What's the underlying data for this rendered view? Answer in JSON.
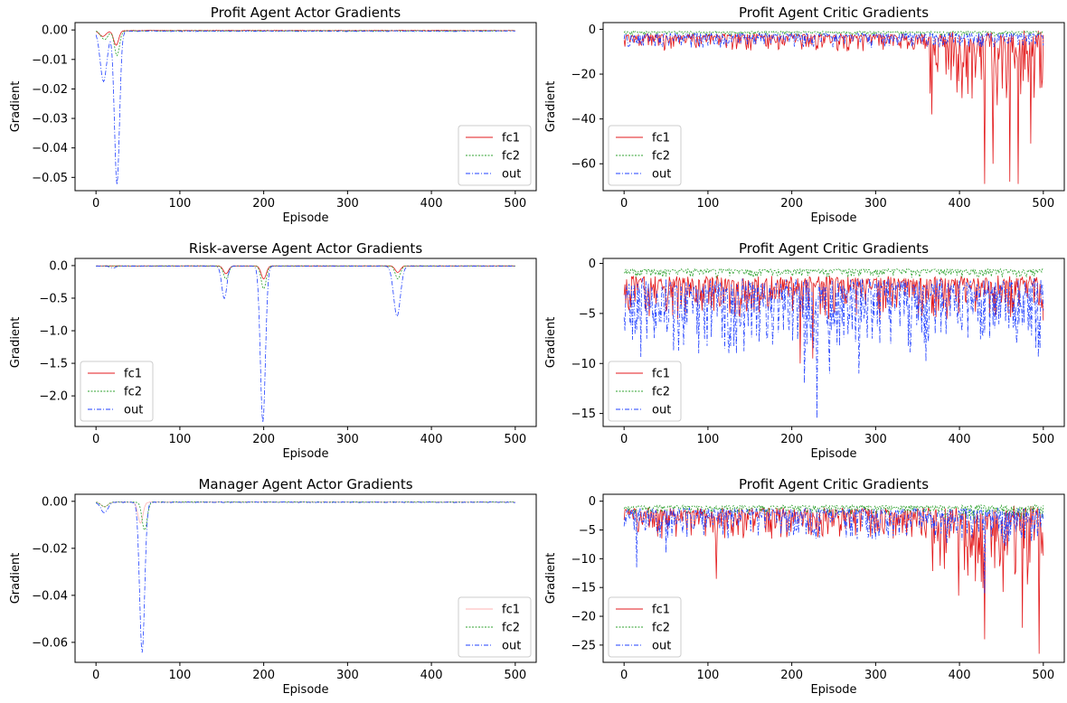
{
  "chart_data": [
    {
      "type": "line",
      "title": "Profit Agent Actor Gradients",
      "xlabel": "Episode",
      "ylabel": "Gradient",
      "xlim": [
        -25,
        525
      ],
      "ylim": [
        -0.0545,
        0.0025
      ],
      "xticks": [
        0,
        100,
        200,
        300,
        400,
        500
      ],
      "yticks": [
        0,
        -0.01,
        -0.02,
        -0.03,
        -0.04,
        -0.05
      ],
      "ytick_labels": [
        "0.00",
        "−0.01",
        "−0.02",
        "−0.03",
        "−0.04",
        "−0.05"
      ],
      "legend": "lower-right",
      "grid": false,
      "series": [
        {
          "name": "fc1",
          "color": "#e31a1c",
          "style": "solid",
          "baseline": -0.0002,
          "noise": 0.0002,
          "dips": [
            [
              8,
              -0.002,
              4
            ],
            [
              24,
              -0.005,
              3
            ]
          ]
        },
        {
          "name": "fc2",
          "color": "#2ca02c",
          "style": "dotted",
          "baseline": -0.0003,
          "noise": 0.0002,
          "dips": [
            [
              10,
              -0.003,
              4
            ],
            [
              25,
              -0.0085,
              3
            ]
          ]
        },
        {
          "name": "out",
          "color": "#1f3fff",
          "style": "dashdot",
          "baseline": -0.0004,
          "noise": 0.0003,
          "dips": [
            [
              9,
              -0.017,
              4
            ],
            [
              25,
              -0.052,
              3
            ]
          ]
        }
      ]
    },
    {
      "type": "line",
      "title": "Profit Agent Critic Gradients",
      "xlabel": "Episode",
      "ylabel": "Gradient",
      "xlim": [
        -25,
        525
      ],
      "ylim": [
        -72,
        3
      ],
      "xticks": [
        0,
        100,
        200,
        300,
        400,
        500
      ],
      "yticks": [
        0,
        -20,
        -40,
        -60
      ],
      "ytick_labels": [
        "0",
        "−20",
        "−40",
        "−60"
      ],
      "legend": "lower-left",
      "grid": false,
      "series": [
        {
          "name": "fc1",
          "color": "#e31a1c",
          "style": "solid",
          "baseline": -2.5,
          "noise": 7,
          "noise2": 30,
          "split": 365,
          "extremes": [
            [
              430,
              -69
            ],
            [
              460,
              -68
            ],
            [
              470,
              -69
            ],
            [
              367,
              -38
            ],
            [
              440,
              -60
            ],
            [
              485,
              -51
            ]
          ]
        },
        {
          "name": "fc2",
          "color": "#2ca02c",
          "style": "dotted",
          "baseline": -1,
          "noise": 1.5,
          "noise2": 2,
          "split": 365
        },
        {
          "name": "out",
          "color": "#1f3fff",
          "style": "dashdot",
          "baseline": -2,
          "noise": 6,
          "noise2": 6,
          "split": 365,
          "extremes": [
            [
              15,
              -5
            ]
          ]
        }
      ]
    },
    {
      "type": "line",
      "title": "Risk-averse Agent Actor Gradients",
      "xlabel": "Episode",
      "ylabel": "Gradient",
      "xlim": [
        -25,
        525
      ],
      "ylim": [
        -2.47,
        0.11
      ],
      "xticks": [
        0,
        100,
        200,
        300,
        400,
        500
      ],
      "yticks": [
        0,
        -0.5,
        -1,
        -1.5,
        -2
      ],
      "ytick_labels": [
        "0.0",
        "−0.5",
        "−1.0",
        "−1.5",
        "−2.0"
      ],
      "legend": "lower-left",
      "grid": false,
      "series": [
        {
          "name": "fc1",
          "color": "#e31a1c",
          "style": "solid",
          "baseline": -0.005,
          "noise": 0.004,
          "dips": [
            [
              155,
              -0.12,
              3
            ],
            [
              200,
              -0.2,
              3
            ],
            [
              360,
              -0.1,
              3
            ]
          ]
        },
        {
          "name": "fc2",
          "color": "#2ca02c",
          "style": "dotted",
          "baseline": -0.005,
          "noise": 0.004,
          "dips": [
            [
              155,
              -0.2,
              3
            ],
            [
              200,
              -0.35,
              3
            ],
            [
              360,
              -0.2,
              3
            ]
          ]
        },
        {
          "name": "out",
          "color": "#1f3fff",
          "style": "dashdot",
          "baseline": -0.008,
          "noise": 0.006,
          "dips": [
            [
              153,
              -0.5,
              3
            ],
            [
              199,
              -2.4,
              3
            ],
            [
              359,
              -0.77,
              4
            ],
            [
              20,
              -0.03,
              3
            ]
          ]
        }
      ]
    },
    {
      "type": "line",
      "title": "Profit Agent Critic Gradients",
      "xlabel": "Episode",
      "ylabel": "Gradient",
      "xlim": [
        -25,
        525
      ],
      "ylim": [
        -16.3,
        0.5
      ],
      "xticks": [
        0,
        100,
        200,
        300,
        400,
        500
      ],
      "yticks": [
        0,
        -5,
        -10,
        -15
      ],
      "ytick_labels": [
        "0",
        "−5",
        "−10",
        "−15"
      ],
      "legend": "lower-left",
      "grid": false,
      "series": [
        {
          "name": "fc1",
          "color": "#e31a1c",
          "style": "solid",
          "baseline": -1.5,
          "noise": 4,
          "noise2": 4,
          "split": 500,
          "extremes": [
            [
              210,
              -10
            ],
            [
              225,
              -9.5
            ]
          ]
        },
        {
          "name": "fc2",
          "color": "#2ca02c",
          "style": "dotted",
          "baseline": -0.6,
          "noise": 0.8,
          "noise2": 0.8,
          "split": 500
        },
        {
          "name": "out",
          "color": "#1f3fff",
          "style": "dashdot",
          "baseline": -2,
          "noise": 7,
          "noise2": 6,
          "split": 500,
          "extremes": [
            [
              230,
              -15.5
            ],
            [
              215,
              -12
            ],
            [
              245,
              -11
            ],
            [
              280,
              -11
            ],
            [
              360,
              -9.8
            ],
            [
              120,
              -8.5
            ]
          ]
        }
      ]
    },
    {
      "type": "line",
      "title": "Manager Agent Actor Gradients",
      "xlabel": "Episode",
      "ylabel": "Gradient",
      "xlim": [
        -25,
        525
      ],
      "ylim": [
        -0.0685,
        0.003
      ],
      "xticks": [
        0,
        100,
        200,
        300,
        400,
        500
      ],
      "yticks": [
        0,
        -0.02,
        -0.04,
        -0.06
      ],
      "ytick_labels": [
        "0.00",
        "−0.02",
        "−0.04",
        "−0.06"
      ],
      "legend": "lower-right",
      "grid": false,
      "series": [
        {
          "name": "fc1",
          "color": "#ffb3b3",
          "style": "solid",
          "baseline": -0.0003,
          "noise": 0.0003,
          "dips": [
            [
              10,
              -0.002,
              4
            ],
            [
              53,
              -0.009,
              3
            ]
          ]
        },
        {
          "name": "fc2",
          "color": "#2ca02c",
          "style": "dotted",
          "baseline": -0.0003,
          "noise": 0.0003,
          "dips": [
            [
              10,
              -0.002,
              4
            ],
            [
              58,
              -0.012,
              3
            ]
          ]
        },
        {
          "name": "out",
          "color": "#1f3fff",
          "style": "dashdot",
          "baseline": -0.0004,
          "noise": 0.0003,
          "dips": [
            [
              10,
              -0.0045,
              4
            ],
            [
              55,
              -0.064,
              3
            ]
          ]
        }
      ]
    },
    {
      "type": "line",
      "title": "Profit Agent Critic Gradients",
      "xlabel": "Episode",
      "ylabel": "Gradient",
      "xlim": [
        -25,
        525
      ],
      "ylim": [
        -28,
        1.2
      ],
      "xticks": [
        0,
        100,
        200,
        300,
        400,
        500
      ],
      "yticks": [
        0,
        -5,
        -10,
        -15,
        -20,
        -25
      ],
      "ytick_labels": [
        "0",
        "−5",
        "−10",
        "−15",
        "−20",
        "−25"
      ],
      "legend": "lower-left",
      "grid": false,
      "series": [
        {
          "name": "fc1",
          "color": "#e31a1c",
          "style": "solid",
          "baseline": -1.5,
          "noise": 5,
          "noise2": 14,
          "split": 365,
          "extremes": [
            [
              110,
              -13.5
            ],
            [
              430,
              -24
            ],
            [
              495,
              -26.5
            ],
            [
              475,
              -22
            ]
          ]
        },
        {
          "name": "fc2",
          "color": "#2ca02c",
          "style": "dotted",
          "baseline": -0.8,
          "noise": 1.5,
          "noise2": 2.5,
          "split": 365
        },
        {
          "name": "out",
          "color": "#1f3fff",
          "style": "dashdot",
          "baseline": -1.5,
          "noise": 5,
          "noise2": 6,
          "split": 365,
          "extremes": [
            [
              15,
              -11.5
            ],
            [
              50,
              -9
            ],
            [
              430,
              -16
            ]
          ]
        }
      ]
    }
  ]
}
